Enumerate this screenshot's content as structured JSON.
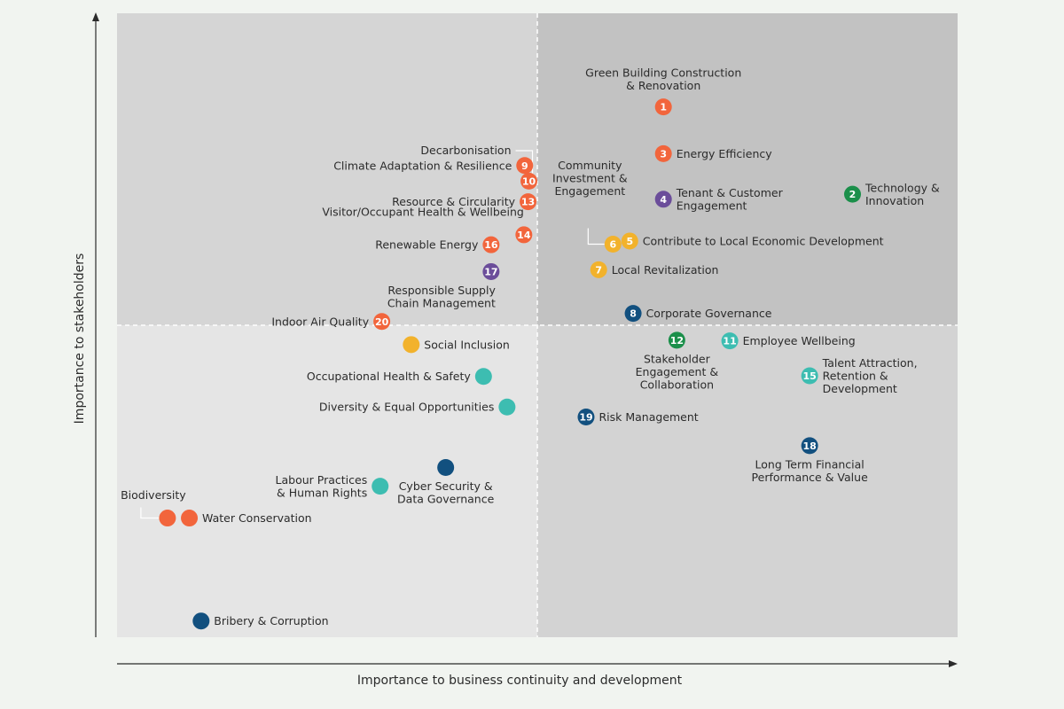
{
  "chart_data": {
    "type": "scatter",
    "title": "",
    "xlabel": "Importance to business continuity and development",
    "ylabel": "Importance to stakeholders",
    "xlim": [
      0,
      100
    ],
    "ylim": [
      0,
      100
    ],
    "grid": false,
    "colors": {
      "environment": "#f2653c",
      "social": "#f2b22c",
      "community": "#3dbdb1",
      "governance": "#12507f",
      "green": "#1b8f4a",
      "purple": "#6b4d9a",
      "q_top_left": "#d5d5d5",
      "q_top_right": "#c2c2c2",
      "q_bottom_left": "#e5e5e5",
      "q_bottom_right": "#d3d3d3"
    },
    "points": [
      {
        "num": "1",
        "label": [
          "Green Building Construction",
          "& Renovation"
        ],
        "x": 65,
        "y": 85,
        "color": "environment",
        "lpos": "above"
      },
      {
        "num": "2",
        "label": [
          "Technology &",
          "Innovation"
        ],
        "x": 87.5,
        "y": 71,
        "color": "green",
        "lpos": "right"
      },
      {
        "num": "3",
        "label": [
          "Energy Efficiency"
        ],
        "x": 65,
        "y": 77.5,
        "color": "environment",
        "lpos": "right"
      },
      {
        "num": "4",
        "label": [
          "Tenant & Customer",
          "Engagement"
        ],
        "x": 65,
        "y": 70.2,
        "color": "purple",
        "lpos": "right"
      },
      {
        "num": "5",
        "label": [
          "Contribute to Local Economic Development"
        ],
        "x": 61,
        "y": 63.5,
        "color": "social",
        "lpos": "right"
      },
      {
        "num": "6",
        "label": [
          "Community",
          "Investment &",
          "Engagement"
        ],
        "x": 59,
        "y": 63,
        "color": "social",
        "lpos": "above-left"
      },
      {
        "num": "7",
        "label": [
          "Local Revitalization"
        ],
        "x": 57.3,
        "y": 58.9,
        "color": "social",
        "lpos": "right"
      },
      {
        "num": "8",
        "label": [
          "Corporate Governance"
        ],
        "x": 61.4,
        "y": 51.9,
        "color": "governance",
        "lpos": "right"
      },
      {
        "num": "9",
        "label": [
          "Climate Adaptation & Resilience"
        ],
        "x": 48.5,
        "y": 75.6,
        "color": "environment",
        "lpos": "left"
      },
      {
        "num": "10",
        "label": [],
        "x": 49,
        "y": 73.1,
        "color": "environment",
        "lpos": "none"
      },
      {
        "num": "11",
        "label": [
          "Employee Wellbeing"
        ],
        "x": 72.9,
        "y": 47.5,
        "color": "community",
        "lpos": "right"
      },
      {
        "num": "12",
        "label": [
          "Stakeholder",
          "Engagement &",
          "Collaboration"
        ],
        "x": 66.6,
        "y": 47.6,
        "color": "green",
        "lpos": "below"
      },
      {
        "num": "13",
        "label": [
          "Resource & Circularity"
        ],
        "x": 48.9,
        "y": 69.8,
        "color": "environment",
        "lpos": "left"
      },
      {
        "num": "14",
        "label": [
          "Visitor/Occupant Health & Wellbeing"
        ],
        "x": 48.4,
        "y": 64.5,
        "color": "environment",
        "lpos": "above-left"
      },
      {
        "num": "15",
        "label": [
          "Talent Attraction,",
          "Retention &",
          "Development"
        ],
        "x": 82.4,
        "y": 41.9,
        "color": "community",
        "lpos": "right"
      },
      {
        "num": "16",
        "label": [
          "Renewable Energy"
        ],
        "x": 44.5,
        "y": 62.9,
        "color": "environment",
        "lpos": "left"
      },
      {
        "num": "17",
        "label": [
          "Responsible Supply",
          "Chain Management"
        ],
        "x": 44.5,
        "y": 58.6,
        "color": "purple",
        "lpos": "below-left"
      },
      {
        "num": "18",
        "label": [
          "Long Term Financial",
          "Performance & Value"
        ],
        "x": 82.4,
        "y": 30.7,
        "color": "governance",
        "lpos": "below"
      },
      {
        "num": "19",
        "label": [
          "Risk Management"
        ],
        "x": 55.8,
        "y": 35.3,
        "color": "governance",
        "lpos": "right"
      },
      {
        "num": "20",
        "label": [
          "Indoor Air Quality"
        ],
        "x": 31.5,
        "y": 50.6,
        "color": "environment",
        "lpos": "left"
      },
      {
        "num": "",
        "label": [
          "Social Inclusion"
        ],
        "x": 35,
        "y": 46.9,
        "color": "social",
        "lpos": "right"
      },
      {
        "num": "",
        "label": [
          "Occupational Health & Safety"
        ],
        "x": 43.6,
        "y": 41.8,
        "color": "community",
        "lpos": "left"
      },
      {
        "num": "",
        "label": [
          "Diversity & Equal Opportunities"
        ],
        "x": 46.4,
        "y": 36.9,
        "color": "community",
        "lpos": "left"
      },
      {
        "num": "",
        "label": [
          "Labour Practices",
          "& Human Rights"
        ],
        "x": 31.3,
        "y": 24.2,
        "color": "community",
        "lpos": "left"
      },
      {
        "num": "",
        "label": [
          "Cyber Security &",
          "Data Governance"
        ],
        "x": 39.1,
        "y": 27.2,
        "color": "governance",
        "lpos": "below"
      },
      {
        "num": "",
        "label": [
          "Biodiversity"
        ],
        "x": 6,
        "y": 19.1,
        "color": "environment",
        "lpos": "above-left"
      },
      {
        "num": "",
        "label": [
          "Water Conservation"
        ],
        "x": 8.6,
        "y": 19.1,
        "color": "environment",
        "lpos": "right"
      },
      {
        "num": "",
        "label": [
          "Bribery & Corruption"
        ],
        "x": 10,
        "y": 2.6,
        "color": "governance",
        "lpos": "right"
      }
    ],
    "annotations": [
      {
        "label": [
          "Decarbonisation"
        ],
        "anchor_point": "10"
      }
    ]
  }
}
